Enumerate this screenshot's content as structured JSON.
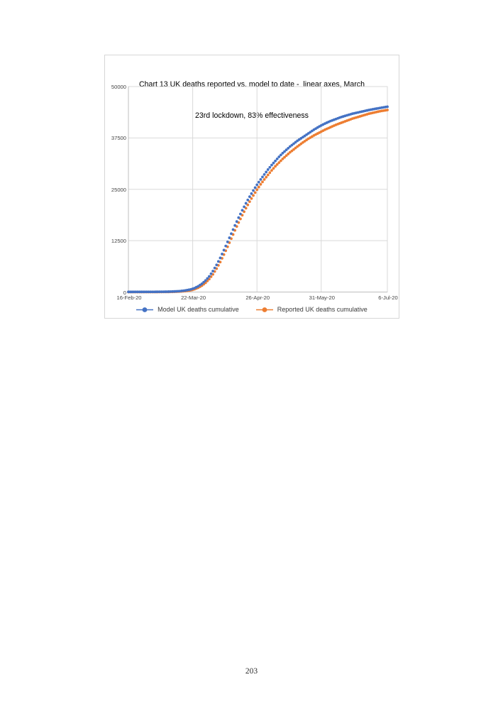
{
  "page": {
    "number": "203"
  },
  "chart": {
    "title_line1": "Chart 13 UK deaths reported vs. model to date -  linear axes, March",
    "title_line2": "23rd lockdown, 83% effectiveness",
    "colors": {
      "model_series": "#4472C4",
      "reported_series": "#ED7D31",
      "gridline": "#d9d9d9",
      "axis_line": "#bfbfbf",
      "axis_text": "#444444"
    }
  },
  "chart_data": {
    "type": "line",
    "style": "cumulative daily point markers (dotted line look)",
    "title": "Chart 13 UK deaths reported vs. model to date -  linear axes, March 23rd lockdown, 83% effectiveness",
    "xlabel": "",
    "ylabel": "",
    "x_axis": {
      "start_date": "16-Feb-20",
      "end_date": "6-Jul-20",
      "total_days": 141,
      "tick_days": [
        0,
        35,
        70,
        105,
        141
      ],
      "tick_labels": [
        "16-Feb-20",
        "22-Mar-20",
        "26-Apr-20",
        "31-May-20",
        "6-Jul-20"
      ]
    },
    "y_axis": {
      "ylim": [
        0,
        50000
      ],
      "tick_values": [
        0,
        12500,
        25000,
        37500,
        50000
      ],
      "tick_labels": [
        "0",
        "12500",
        "25000",
        "37500",
        "50000"
      ]
    },
    "grid": true,
    "legend_position": "bottom",
    "series": [
      {
        "name": "Model UK deaths cumulative",
        "color": "#4472C4",
        "marker": "filled-circle",
        "sample_interval_days": 1,
        "anchors_day_value": [
          [
            0,
            30
          ],
          [
            7,
            35
          ],
          [
            14,
            45
          ],
          [
            21,
            80
          ],
          [
            25,
            140
          ],
          [
            28,
            220
          ],
          [
            31,
            380
          ],
          [
            34,
            650
          ],
          [
            36,
            950
          ],
          [
            38,
            1400
          ],
          [
            40,
            2000
          ],
          [
            42,
            2800
          ],
          [
            44,
            3800
          ],
          [
            46,
            5100
          ],
          [
            48,
            6600
          ],
          [
            50,
            8300
          ],
          [
            52,
            10200
          ],
          [
            54,
            12200
          ],
          [
            56,
            14200
          ],
          [
            58,
            16200
          ],
          [
            60,
            18100
          ],
          [
            62,
            19900
          ],
          [
            64,
            21600
          ],
          [
            66,
            23200
          ],
          [
            68,
            24700
          ],
          [
            70,
            26100
          ],
          [
            72,
            27400
          ],
          [
            74,
            28600
          ],
          [
            76,
            29800
          ],
          [
            78,
            30900
          ],
          [
            80,
            31900
          ],
          [
            82,
            32900
          ],
          [
            84,
            33800
          ],
          [
            86,
            34600
          ],
          [
            88,
            35400
          ],
          [
            90,
            36100
          ],
          [
            92,
            36800
          ],
          [
            95,
            37700
          ],
          [
            98,
            38600
          ],
          [
            101,
            39500
          ],
          [
            104,
            40300
          ],
          [
            107,
            41000
          ],
          [
            110,
            41600
          ],
          [
            113,
            42100
          ],
          [
            116,
            42600
          ],
          [
            119,
            43000
          ],
          [
            122,
            43400
          ],
          [
            125,
            43700
          ],
          [
            128,
            44000
          ],
          [
            131,
            44300
          ],
          [
            134,
            44550
          ],
          [
            137,
            44800
          ],
          [
            141,
            45100
          ]
        ]
      },
      {
        "name": "Reported UK deaths cumulative",
        "color": "#ED7D31",
        "marker": "filled-circle",
        "sample_interval_days": 1,
        "anchors_day_value": [
          [
            0,
            0
          ],
          [
            7,
            0
          ],
          [
            14,
            5
          ],
          [
            21,
            20
          ],
          [
            25,
            60
          ],
          [
            28,
            120
          ],
          [
            31,
            230
          ],
          [
            34,
            430
          ],
          [
            36,
            680
          ],
          [
            38,
            1050
          ],
          [
            40,
            1550
          ],
          [
            42,
            2250
          ],
          [
            44,
            3150
          ],
          [
            46,
            4300
          ],
          [
            48,
            5700
          ],
          [
            50,
            7300
          ],
          [
            52,
            9100
          ],
          [
            54,
            11000
          ],
          [
            56,
            13000
          ],
          [
            58,
            15000
          ],
          [
            60,
            16900
          ],
          [
            62,
            18700
          ],
          [
            64,
            20400
          ],
          [
            66,
            22000
          ],
          [
            68,
            23500
          ],
          [
            70,
            24900
          ],
          [
            72,
            26200
          ],
          [
            74,
            27400
          ],
          [
            76,
            28500
          ],
          [
            78,
            29600
          ],
          [
            80,
            30600
          ],
          [
            82,
            31500
          ],
          [
            84,
            32400
          ],
          [
            86,
            33200
          ],
          [
            88,
            34000
          ],
          [
            90,
            34700
          ],
          [
            92,
            35400
          ],
          [
            95,
            36400
          ],
          [
            98,
            37300
          ],
          [
            101,
            38100
          ],
          [
            104,
            38800
          ],
          [
            107,
            39500
          ],
          [
            110,
            40100
          ],
          [
            113,
            40700
          ],
          [
            116,
            41200
          ],
          [
            119,
            41700
          ],
          [
            122,
            42200
          ],
          [
            125,
            42600
          ],
          [
            128,
            43000
          ],
          [
            131,
            43400
          ],
          [
            134,
            43700
          ],
          [
            137,
            44000
          ],
          [
            141,
            44300
          ]
        ]
      }
    ]
  }
}
